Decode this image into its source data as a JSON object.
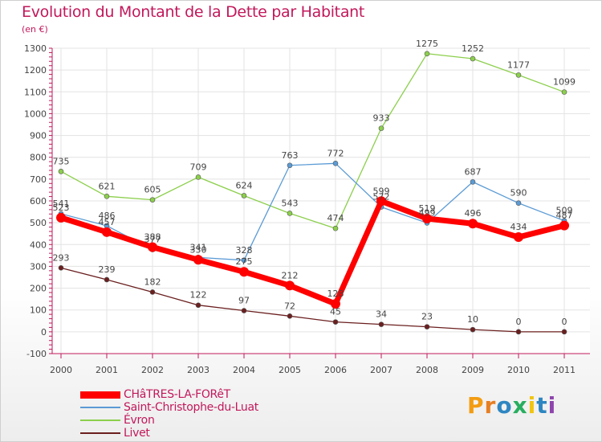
{
  "chart_data": {
    "type": "line",
    "title": "Evolution du Montant de la Dette par Habitant",
    "unit": "(en €)",
    "xlabel": "",
    "ylabel": "",
    "categories": [
      "2000",
      "2001",
      "2002",
      "2003",
      "2004",
      "2005",
      "2006",
      "2007",
      "2008",
      "2009",
      "2010",
      "2011"
    ],
    "ylim": [
      -100,
      1300
    ],
    "yticks": [
      -100,
      0,
      100,
      200,
      300,
      400,
      500,
      600,
      700,
      800,
      900,
      1000,
      1100,
      1200,
      1300
    ],
    "grid": true,
    "legend_position": "bottom-left",
    "series": [
      {
        "name": "CHâTRES-LA-FORêT",
        "color": "#ff0000",
        "values": [
          523,
          457,
          388,
          330,
          275,
          212,
          128,
          599,
          519,
          496,
          434,
          487
        ]
      },
      {
        "name": "Saint-Christophe-du-Luat",
        "color": "#5b9bd5",
        "values": [
          541,
          486,
          377,
          341,
          328,
          763,
          772,
          572,
          499,
          687,
          590,
          509
        ]
      },
      {
        "name": "Évron",
        "color": "#8ccf4c",
        "values": [
          735,
          621,
          605,
          709,
          624,
          543,
          474,
          933,
          1275,
          1252,
          1177,
          1099
        ]
      },
      {
        "name": "Livet",
        "color": "#6b1f1f",
        "values": [
          293,
          239,
          182,
          122,
          97,
          72,
          45,
          34,
          23,
          10,
          0,
          0
        ]
      }
    ]
  },
  "brand": {
    "name": "Proxiti",
    "letters": [
      "P",
      "r",
      "o",
      "x",
      "i",
      "t",
      "i"
    ],
    "colors": [
      "#f39c12",
      "#e67e22",
      "#2e86c1",
      "#27ae60",
      "#f1c40f",
      "#2e86c1",
      "#8e44ad"
    ]
  }
}
